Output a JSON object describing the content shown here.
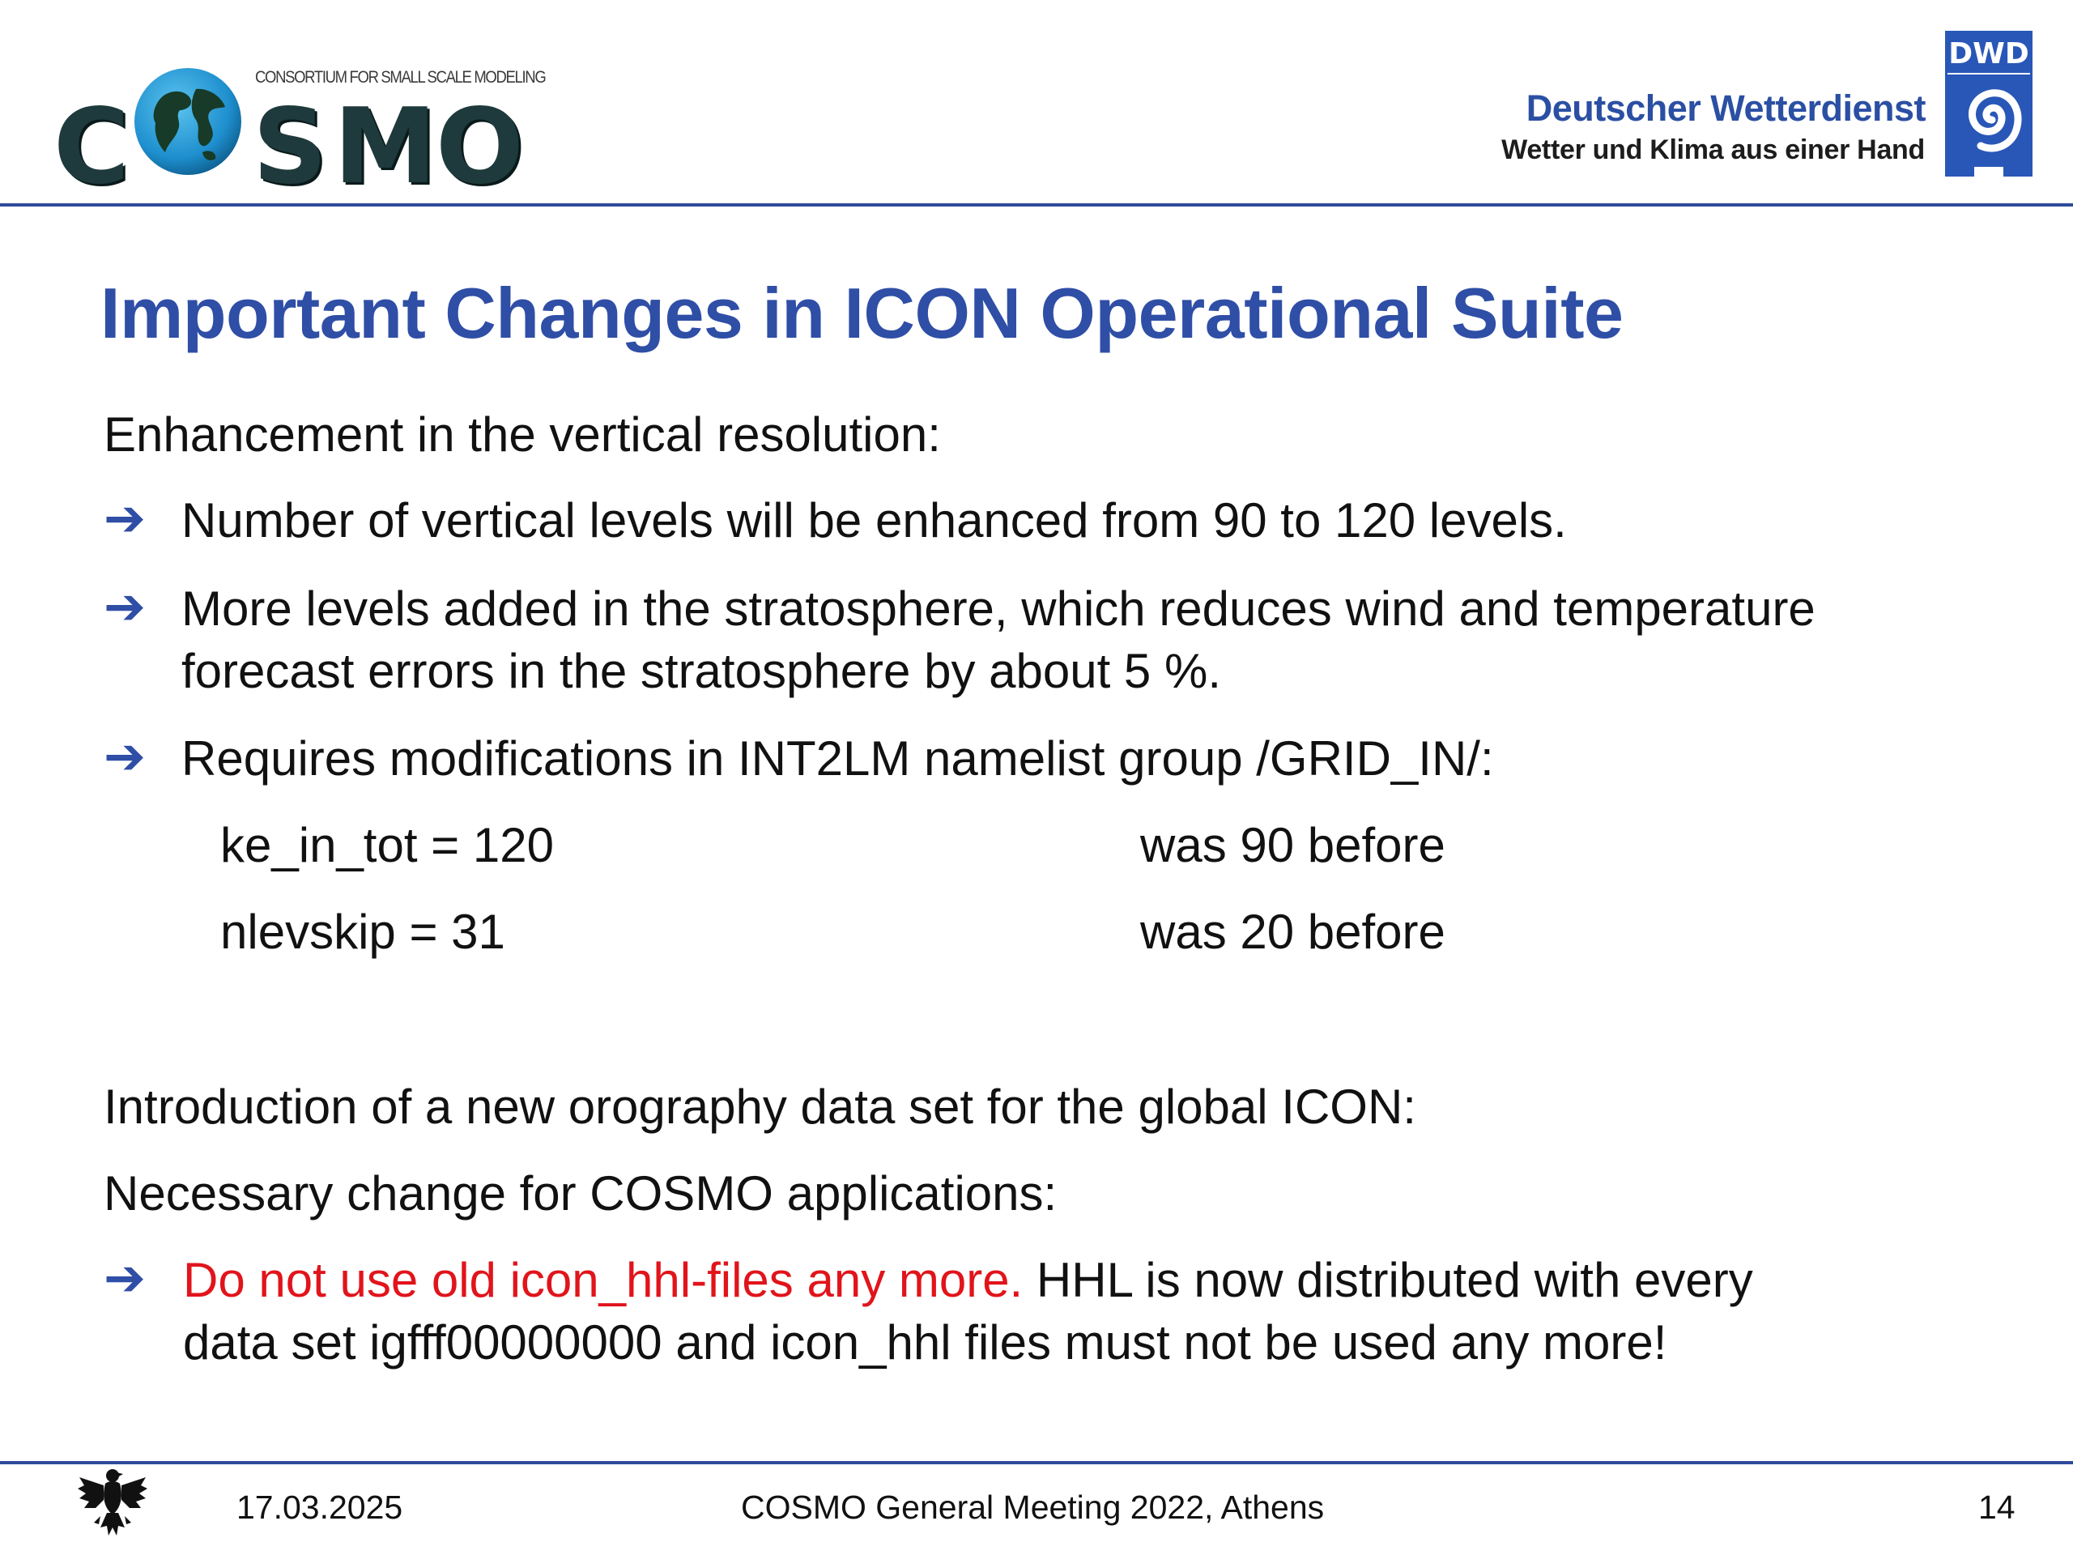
{
  "header": {
    "cosmo_logo": {
      "tagline": "CONSORTIUM FOR SMALL SCALE MODELING",
      "letters": {
        "c": "C",
        "s": "S",
        "m": "M",
        "o": "O"
      },
      "globe_icon": "globe-icon"
    },
    "dwd": {
      "name": "Deutscher Wetterdienst",
      "tagline": "Wetter und Klima aus einer Hand",
      "logo_text": "DWD",
      "logo_icon": "spiral-icon"
    }
  },
  "slide": {
    "title": "Important Changes in ICON Operational Suite",
    "section1_heading": "Enhancement in the vertical resolution:",
    "bullets": [
      {
        "lines": [
          "Number of vertical levels will be enhanced from 90 to 120 levels."
        ]
      },
      {
        "lines": [
          "More levels added in the stratosphere, which reduces wind and temperature",
          "forecast errors in the stratosphere by about 5 %."
        ]
      },
      {
        "lines": [
          "Requires modifications in INT2LM namelist group /GRID_IN/:"
        ]
      }
    ],
    "settings": [
      {
        "setting": "ke_in_tot = 120",
        "note": "was 90 before"
      },
      {
        "setting": "nlevskip = 31",
        "note": "was 20 before"
      }
    ],
    "section2_heading": "Introduction of a new orography data set for the global ICON:",
    "section3_heading": "Necessary change for COSMO applications:",
    "final_bullet": {
      "highlight": "Do not use old icon_hhl-files any more.",
      "rest_line1": " HHL is now distributed with every",
      "line2": "data set igfff00000000 and icon_hhl files must not be used any more!"
    }
  },
  "footer": {
    "date": "17.03.2025",
    "event": "COSMO General Meeting 2022, Athens",
    "page": "14",
    "emblem": "federal-eagle-icon"
  },
  "colors": {
    "title_blue": "#2f4ea6",
    "rule_blue": "#2e4a9a",
    "highlight_red": "#e1141b",
    "cosmo_dark": "#1f3a3c"
  }
}
